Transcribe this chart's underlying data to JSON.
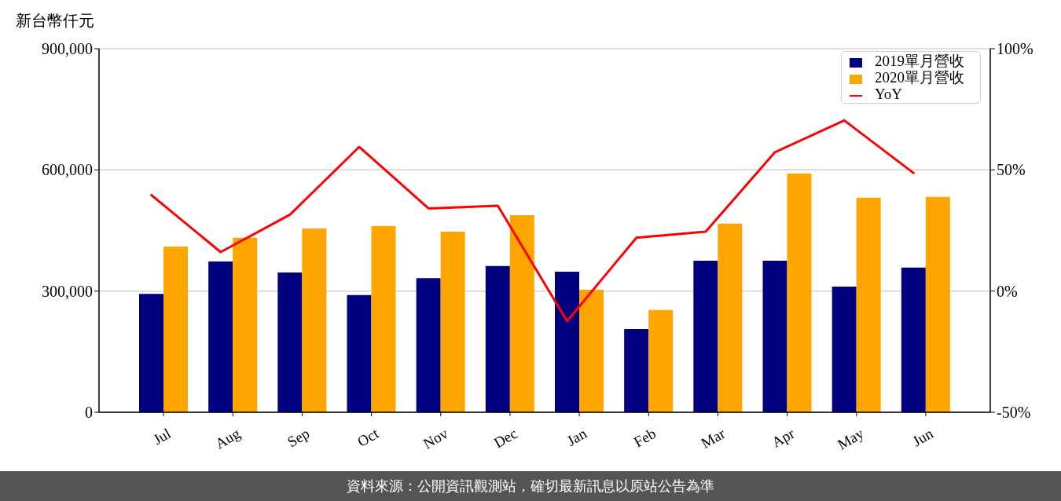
{
  "chart_data": {
    "type": "bar",
    "ylabel": "新台幣仟元",
    "annotations": [
      "資料來源：公開資訊觀測站，確切最新訊息以原站公告為準"
    ],
    "categories": [
      "Jul",
      "Aug",
      "Sep",
      "Oct",
      "Nov",
      "Dec",
      "Jan",
      "Feb",
      "Mar",
      "Apr",
      "May",
      "Jun"
    ],
    "series": [
      {
        "name": "2019單月營收",
        "color": "#000080",
        "values": [
          293000,
          373000,
          346000,
          290000,
          332000,
          362000,
          348000,
          206000,
          375000,
          375000,
          311000,
          358000
        ]
      },
      {
        "name": "2020單月營收",
        "color": "#ffa500",
        "values": [
          410000,
          432000,
          455000,
          461000,
          447000,
          488000,
          303000,
          253000,
          467000,
          591000,
          531000,
          533000
        ]
      },
      {
        "name": "YoY",
        "type": "line",
        "axis": "y2",
        "color": "#ff0000",
        "marker": "none",
        "values": [
          39.6,
          16.1,
          31.5,
          59.5,
          34.1,
          35.2,
          -12.4,
          22.0,
          24.5,
          57.3,
          70.4,
          48.7
        ]
      }
    ],
    "ylim": [
      0,
      900000
    ],
    "yticks": [
      0,
      {
        "value": 300000,
        "label": "300,000"
      },
      {
        "value": 600000,
        "label": "600,000"
      },
      {
        "value": 900000,
        "label": "900,000"
      }
    ],
    "y2lim": [
      -50,
      100
    ],
    "y2ticks": [
      {
        "value": -50,
        "label": "-50%"
      },
      {
        "value": 0,
        "label": "0%"
      },
      {
        "value": 50,
        "label": "50%"
      },
      {
        "value": 100,
        "label": "100%"
      }
    ],
    "grid": "y",
    "legend": "top right"
  }
}
